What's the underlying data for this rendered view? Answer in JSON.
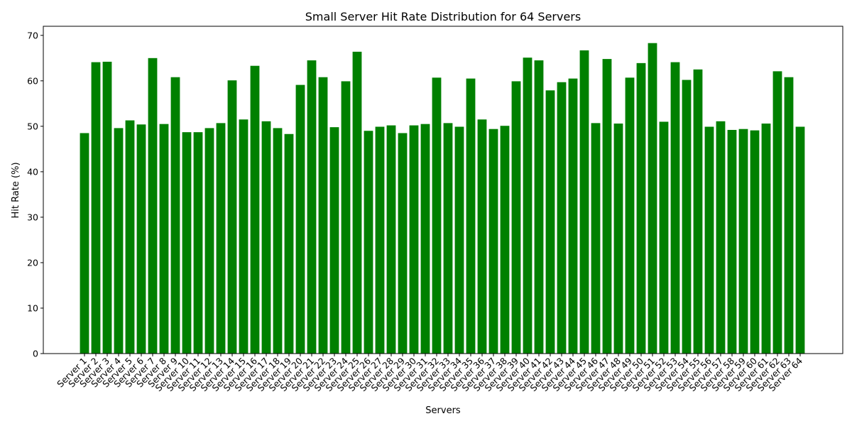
{
  "chart_data": {
    "type": "bar",
    "title": "Small Server Hit Rate Distribution for 64 Servers",
    "xlabel": "Servers",
    "ylabel": "Hit Rate (%)",
    "ylim": [
      0,
      72
    ],
    "yticks": [
      0,
      10,
      20,
      30,
      40,
      50,
      60,
      70
    ],
    "grid": false,
    "bar_color": "#008000",
    "categories": [
      "Server 1",
      "Server 2",
      "Server 3",
      "Server 4",
      "Server 5",
      "Server 6",
      "Server 7",
      "Server 8",
      "Server 9",
      "Server 10",
      "Server 11",
      "Server 12",
      "Server 13",
      "Server 14",
      "Server 15",
      "Server 16",
      "Server 17",
      "Server 18",
      "Server 19",
      "Server 20",
      "Server 21",
      "Server 22",
      "Server 23",
      "Server 24",
      "Server 25",
      "Server 26",
      "Server 27",
      "Server 28",
      "Server 29",
      "Server 30",
      "Server 31",
      "Server 32",
      "Server 33",
      "Server 34",
      "Server 35",
      "Server 36",
      "Server 37",
      "Server 38",
      "Server 39",
      "Server 40",
      "Server 41",
      "Server 42",
      "Server 43",
      "Server 44",
      "Server 45",
      "Server 46",
      "Server 47",
      "Server 48",
      "Server 49",
      "Server 50",
      "Server 51",
      "Server 52",
      "Server 53",
      "Server 54",
      "Server 55",
      "Server 56",
      "Server 57",
      "Server 58",
      "Server 59",
      "Server 60",
      "Server 61",
      "Server 62",
      "Server 63",
      "Server 64"
    ],
    "values": [
      48.5,
      64.1,
      64.2,
      49.6,
      51.3,
      50.4,
      65.0,
      50.5,
      60.8,
      48.7,
      48.7,
      49.6,
      50.7,
      60.1,
      51.5,
      63.3,
      51.1,
      49.6,
      48.3,
      59.1,
      64.5,
      60.8,
      49.8,
      59.9,
      66.4,
      49.0,
      49.9,
      50.2,
      48.5,
      50.2,
      50.5,
      60.7,
      50.7,
      49.9,
      60.5,
      51.5,
      49.4,
      50.1,
      59.9,
      65.1,
      64.5,
      57.9,
      59.7,
      60.5,
      66.7,
      50.7,
      64.8,
      50.6,
      60.7,
      63.9,
      68.3,
      51.0,
      64.1,
      60.2,
      62.5,
      49.9,
      51.1,
      49.2,
      49.4,
      49.1,
      50.6,
      62.1,
      60.8,
      49.9
    ]
  }
}
